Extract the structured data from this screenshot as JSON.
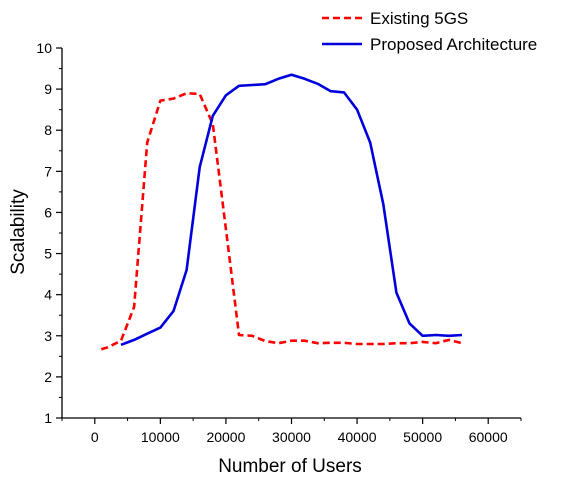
{
  "chart_data": {
    "type": "line",
    "title": "",
    "xlabel": "Number of Users",
    "ylabel": "Scalability",
    "xlim": [
      -5000,
      65000
    ],
    "ylim": [
      1,
      10
    ],
    "xticks": [
      0,
      10000,
      20000,
      30000,
      40000,
      50000,
      60000
    ],
    "yticks": [
      1,
      2,
      3,
      4,
      5,
      6,
      7,
      8,
      9,
      10
    ],
    "grid": false,
    "legend_position": "top-right",
    "series": [
      {
        "name": "Existing 5GS",
        "color": "#ff0000",
        "style": "dashed",
        "x": [
          1000,
          2000,
          4000,
          6000,
          8000,
          10000,
          12000,
          14000,
          16000,
          18000,
          20000,
          22000,
          24000,
          26000,
          28000,
          30000,
          32000,
          34000,
          36000,
          38000,
          40000,
          42000,
          44000,
          46000,
          48000,
          50000,
          52000,
          54000,
          56000
        ],
        "y": [
          2.67,
          2.72,
          2.88,
          3.7,
          7.7,
          8.72,
          8.77,
          8.9,
          8.88,
          8.15,
          5.6,
          3.02,
          3.0,
          2.87,
          2.82,
          2.88,
          2.88,
          2.82,
          2.83,
          2.83,
          2.8,
          2.8,
          2.8,
          2.82,
          2.82,
          2.85,
          2.82,
          2.9,
          2.82
        ]
      },
      {
        "name": "Proposed Architecture",
        "color": "#0000dd",
        "style": "solid",
        "x": [
          4000,
          6000,
          8000,
          10000,
          12000,
          14000,
          16000,
          18000,
          20000,
          22000,
          24000,
          26000,
          28000,
          30000,
          32000,
          34000,
          36000,
          38000,
          40000,
          42000,
          44000,
          46000,
          48000,
          50000,
          52000,
          54000,
          56000
        ],
        "y": [
          2.78,
          2.9,
          3.05,
          3.2,
          3.6,
          4.6,
          7.1,
          8.35,
          8.85,
          9.08,
          9.1,
          9.12,
          9.25,
          9.35,
          9.25,
          9.13,
          8.95,
          8.92,
          8.5,
          7.7,
          6.2,
          4.05,
          3.3,
          3.0,
          3.02,
          3.0,
          3.02
        ]
      }
    ]
  }
}
